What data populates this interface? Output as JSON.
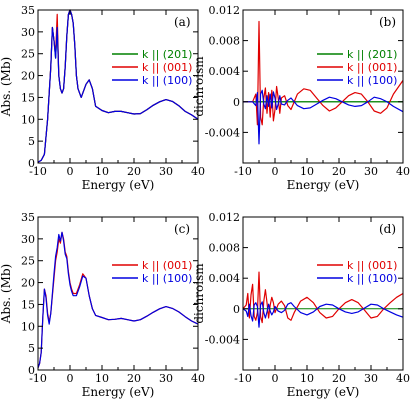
{
  "chart_data": [
    {
      "panel": "(a)",
      "type": "line",
      "xlabel": "Energy (eV)",
      "ylabel": "Abs. (Mb)",
      "xlim": [
        -10,
        40
      ],
      "ylim": [
        0,
        35
      ],
      "xticks": [
        -10,
        0,
        10,
        20,
        30,
        40
      ],
      "yticks": [
        0,
        5,
        10,
        15,
        20,
        25,
        30,
        35
      ],
      "legend_position": "right",
      "series": [
        {
          "name": "k || (201)",
          "color": "#008000",
          "x": [
            -10,
            -9,
            -8,
            -7,
            -6,
            -5.5,
            -5,
            -4.5,
            -4,
            -3.5,
            -3,
            -2.5,
            -2,
            -1.5,
            -1,
            -0.5,
            0,
            0.5,
            1,
            1.5,
            2,
            2.5,
            3,
            3.5,
            4,
            5,
            6,
            7,
            8,
            10,
            12,
            14,
            16,
            18,
            20,
            22,
            24,
            26,
            28,
            30,
            32,
            34,
            36,
            38,
            40
          ],
          "y": [
            0.2,
            0.6,
            2,
            10,
            22,
            31,
            28,
            24,
            31,
            20,
            17,
            16,
            17,
            22,
            29,
            34,
            35,
            34,
            32,
            27,
            20,
            17,
            16,
            15,
            16,
            18,
            19,
            17,
            13,
            12,
            11.5,
            11.8,
            11.8,
            11.5,
            11.2,
            11.3,
            12.2,
            13.2,
            14,
            14.5,
            14.1,
            13.1,
            11.8,
            11,
            10
          ]
        },
        {
          "name": "k || (001)",
          "color": "#e00000",
          "x": [
            -10,
            -9,
            -8,
            -7,
            -6,
            -5.5,
            -5,
            -4.5,
            -4,
            -3.5,
            -3,
            -2.5,
            -2,
            -1.5,
            -1,
            -0.5,
            0,
            0.5,
            1,
            1.5,
            2,
            2.5,
            3,
            3.5,
            4,
            5,
            6,
            7,
            8,
            10,
            12,
            14,
            16,
            18,
            20,
            22,
            24,
            26,
            28,
            30,
            32,
            34,
            36,
            38,
            40
          ],
          "y": [
            0.2,
            0.6,
            2,
            10,
            22,
            31,
            28,
            25,
            34,
            20,
            17,
            16,
            17,
            22,
            29,
            34,
            35,
            34,
            32,
            27,
            20,
            17,
            16,
            15,
            16,
            18,
            19,
            17,
            13,
            12,
            11.5,
            11.8,
            11.8,
            11.5,
            11.2,
            11.3,
            12.2,
            13.2,
            14,
            14.5,
            14.1,
            13.1,
            11.8,
            11,
            10
          ]
        },
        {
          "name": "k || (100)",
          "color": "#0000e0",
          "x": [
            -10,
            -9,
            -8,
            -7,
            -6,
            -5.5,
            -5,
            -4.5,
            -4,
            -3.5,
            -3,
            -2.5,
            -2,
            -1.5,
            -1,
            -0.5,
            0,
            0.5,
            1,
            1.5,
            2,
            2.5,
            3,
            3.5,
            4,
            5,
            6,
            7,
            8,
            10,
            12,
            14,
            16,
            18,
            20,
            22,
            24,
            26,
            28,
            30,
            32,
            34,
            36,
            38,
            40
          ],
          "y": [
            0.2,
            0.6,
            2,
            10,
            22,
            31,
            28,
            24,
            31,
            20,
            17,
            16,
            17,
            22,
            29,
            34,
            35,
            34,
            32,
            27,
            20,
            17,
            16,
            15,
            16,
            18,
            19,
            17,
            13,
            12,
            11.5,
            11.8,
            11.8,
            11.5,
            11.2,
            11.3,
            12.2,
            13.2,
            14,
            14.5,
            14.1,
            13.1,
            11.8,
            11,
            10
          ]
        }
      ]
    },
    {
      "panel": "(b)",
      "type": "line",
      "xlabel": "Energy (eV)",
      "ylabel": "dichroism",
      "xlim": [
        -10,
        40
      ],
      "ylim": [
        -0.008,
        0.012
      ],
      "xticks": [
        -10,
        0,
        10,
        20,
        30,
        40
      ],
      "yticks": [
        -0.004,
        0,
        0.004,
        0.008,
        0.012
      ],
      "ytick_labels": [
        "-0.004",
        "0",
        "0.004",
        "0.008",
        "0.012"
      ],
      "legend_position": "right",
      "series": [
        {
          "name": "k || (201)",
          "color": "#008000",
          "x": [
            -10,
            40
          ],
          "y": [
            0,
            0
          ]
        },
        {
          "name": "k || (001)",
          "color": "#e00000",
          "x": [
            -10,
            -8,
            -7,
            -6,
            -5.5,
            -5,
            -4.5,
            -4,
            -3.5,
            -3,
            -2.5,
            -2,
            -1.5,
            -1,
            -0.5,
            0,
            0.5,
            1,
            1.5,
            2,
            3,
            4,
            5,
            7,
            9,
            11,
            13,
            15,
            17,
            19,
            21,
            23,
            25,
            27,
            29,
            31,
            33,
            35,
            37,
            40
          ],
          "y": [
            0,
            0,
            0,
            0.001,
            -0.003,
            0.0105,
            -0.002,
            -0.003,
            0.0005,
            0.0018,
            -0.0015,
            0.0012,
            -0.002,
            0.0015,
            -0.0025,
            -0.001,
            0.002,
            0.0005,
            -0.0015,
            0.0005,
            0.0008,
            -0.0005,
            -0.001,
            0.001,
            0.0017,
            0.0015,
            0.0005,
            -0.0005,
            -0.0012,
            -0.0008,
            0,
            0.0008,
            0.0012,
            0.001,
            0,
            -0.0012,
            -0.0015,
            -0.0008,
            0.001,
            0.0028
          ]
        },
        {
          "name": "k || (100)",
          "color": "#0000e0",
          "x": [
            -10,
            -8,
            -7,
            -6,
            -5.5,
            -5,
            -4.5,
            -4,
            -3.5,
            -3,
            -2.5,
            -2,
            -1.5,
            -1,
            -0.5,
            0,
            0.5,
            1,
            1.5,
            2,
            3,
            4,
            5,
            7,
            9,
            11,
            13,
            15,
            17,
            19,
            21,
            23,
            25,
            27,
            29,
            31,
            33,
            35,
            37,
            40
          ],
          "y": [
            0,
            0,
            0,
            -0.0005,
            0.0012,
            -0.0055,
            0.001,
            0.0015,
            -0.0003,
            -0.0009,
            0.0008,
            -0.0006,
            0.001,
            -0.0008,
            0.0013,
            0.0005,
            -0.001,
            -0.0003,
            0.0008,
            -0.0003,
            -0.0004,
            0.0002,
            0.0005,
            -0.0005,
            -0.0009,
            -0.0008,
            -0.0003,
            0.0002,
            0.0006,
            0.0004,
            0,
            -0.0004,
            -0.0006,
            -0.0005,
            0,
            0.0006,
            0.0004,
            0,
            -0.0006,
            -0.0013
          ]
        }
      ]
    },
    {
      "panel": "(c)",
      "type": "line",
      "xlabel": "Energy (eV)",
      "ylabel": "Abs. (Mb)",
      "xlim": [
        -10,
        40
      ],
      "ylim": [
        0,
        35
      ],
      "xticks": [
        -10,
        0,
        10,
        20,
        30,
        40
      ],
      "yticks": [
        0,
        5,
        10,
        15,
        20,
        25,
        30,
        35
      ],
      "legend_position": "right",
      "series": [
        {
          "name": "k || (001)",
          "color": "#e00000",
          "x": [
            -10,
            -9.5,
            -9,
            -8.5,
            -8,
            -7.5,
            -7,
            -6.5,
            -6,
            -5.5,
            -5,
            -4.5,
            -4,
            -3.5,
            -3,
            -2.5,
            -2,
            -1.5,
            -1,
            -0.5,
            0,
            0.5,
            1,
            2,
            3,
            4,
            5,
            6,
            7,
            8,
            10,
            12,
            14,
            16,
            18,
            20,
            22,
            24,
            26,
            28,
            30,
            32,
            34,
            36,
            38,
            40
          ],
          "y": [
            0.5,
            1.5,
            4,
            12,
            18.5,
            17,
            13,
            11,
            13,
            17,
            21,
            25,
            27,
            30,
            29,
            31.5,
            30,
            27,
            26,
            22.5,
            20,
            18.5,
            17.5,
            17.5,
            19.5,
            22,
            21,
            17,
            14,
            12.5,
            12,
            11.5,
            11.6,
            11.8,
            11.5,
            11.2,
            11.5,
            12.3,
            13.2,
            14,
            14.5,
            14.1,
            13.3,
            12.2,
            11.2,
            10.5
          ]
        },
        {
          "name": "k || (100)",
          "color": "#0000e0",
          "x": [
            -10,
            -9.5,
            -9,
            -8.5,
            -8,
            -7.5,
            -7,
            -6.5,
            -6,
            -5.5,
            -5,
            -4.5,
            -4,
            -3.5,
            -3,
            -2.5,
            -2,
            -1.5,
            -1,
            -0.5,
            0,
            0.5,
            1,
            2,
            3,
            4,
            5,
            6,
            7,
            8,
            10,
            12,
            14,
            16,
            18,
            20,
            22,
            24,
            26,
            28,
            30,
            32,
            34,
            36,
            38,
            40
          ],
          "y": [
            0.5,
            1.5,
            4,
            12,
            18.5,
            16.5,
            12.5,
            10.5,
            13,
            17.5,
            22,
            26,
            28,
            31,
            29.5,
            31.5,
            29.5,
            26.5,
            25.5,
            22,
            19.5,
            18,
            17,
            17,
            19,
            21.5,
            21,
            17,
            14,
            12.5,
            12,
            11.5,
            11.6,
            11.8,
            11.5,
            11.2,
            11.5,
            12.3,
            13.2,
            14,
            14.5,
            14.1,
            13.3,
            12.2,
            11.2,
            10.5
          ]
        }
      ]
    },
    {
      "panel": "(d)",
      "type": "line",
      "xlabel": "Energy (eV)",
      "ylabel": "dichroism",
      "xlim": [
        -10,
        40
      ],
      "ylim": [
        -0.008,
        0.012
      ],
      "xticks": [
        -10,
        0,
        10,
        20,
        30,
        40
      ],
      "yticks": [
        -0.004,
        0,
        0.004,
        0.008,
        0.012
      ],
      "ytick_labels": [
        "-0.004",
        "0",
        "0.004",
        "0.008",
        "0.012"
      ],
      "legend_position": "right",
      "series": [
        {
          "name": "k || (001)",
          "color": "#e00000",
          "x": [
            -10,
            -9,
            -8.5,
            -8,
            -7.5,
            -7,
            -6.5,
            -6,
            -5.5,
            -5,
            -4.5,
            -4,
            -3.5,
            -3,
            -2.5,
            -2,
            -1.5,
            -1,
            -0.5,
            0,
            1,
            2,
            3,
            4,
            5,
            6,
            8,
            10,
            12,
            14,
            16,
            18,
            20,
            22,
            24,
            26,
            28,
            30,
            32,
            34,
            36,
            38,
            40
          ],
          "y": [
            0,
            0.0005,
            0.002,
            -0.0012,
            0.0018,
            0.0032,
            -0.001,
            -0.0015,
            -0.0005,
            0.0048,
            -0.001,
            -0.0018,
            0.001,
            0.0025,
            0.0008,
            -0.0012,
            0.0005,
            0.0015,
            0.0008,
            -0.0005,
            0.0006,
            0.001,
            0.0004,
            -0.0012,
            -0.0015,
            -0.0005,
            0.001,
            0.0015,
            0.0008,
            -0.0005,
            -0.0012,
            -0.001,
            0,
            0.0008,
            0.0012,
            0.0008,
            -0.0002,
            -0.0012,
            -0.001,
            0,
            0.0008,
            0.0015,
            0.002
          ]
        },
        {
          "name": "k || (100)",
          "color": "#0000e0",
          "x": [
            -10,
            -9,
            -8.5,
            -8,
            -7.5,
            -7,
            -6.5,
            -6,
            -5.5,
            -5,
            -4.5,
            -4,
            -3.5,
            -3,
            -2.5,
            -2,
            -1.5,
            -1,
            -0.5,
            0,
            1,
            2,
            3,
            4,
            5,
            6,
            8,
            10,
            12,
            14,
            16,
            18,
            20,
            22,
            24,
            26,
            28,
            30,
            32,
            34,
            36,
            38,
            40
          ],
          "y": [
            0,
            -0.0003,
            -0.001,
            0.0006,
            -0.0009,
            -0.0016,
            0.0005,
            0.0008,
            0.0003,
            -0.0024,
            0.0005,
            0.0009,
            -0.0005,
            -0.0012,
            -0.0004,
            0.0006,
            -0.0003,
            -0.0008,
            -0.0004,
            0.0003,
            -0.0003,
            -0.0005,
            -0.0002,
            0.0006,
            0.0008,
            0.0003,
            -0.0005,
            -0.0008,
            -0.0004,
            0.0003,
            0.0006,
            0.0005,
            0,
            -0.0004,
            -0.0006,
            -0.0004,
            0.0001,
            0.0006,
            0.0005,
            0,
            -0.0004,
            -0.0008,
            -0.0011
          ]
        }
      ]
    }
  ]
}
